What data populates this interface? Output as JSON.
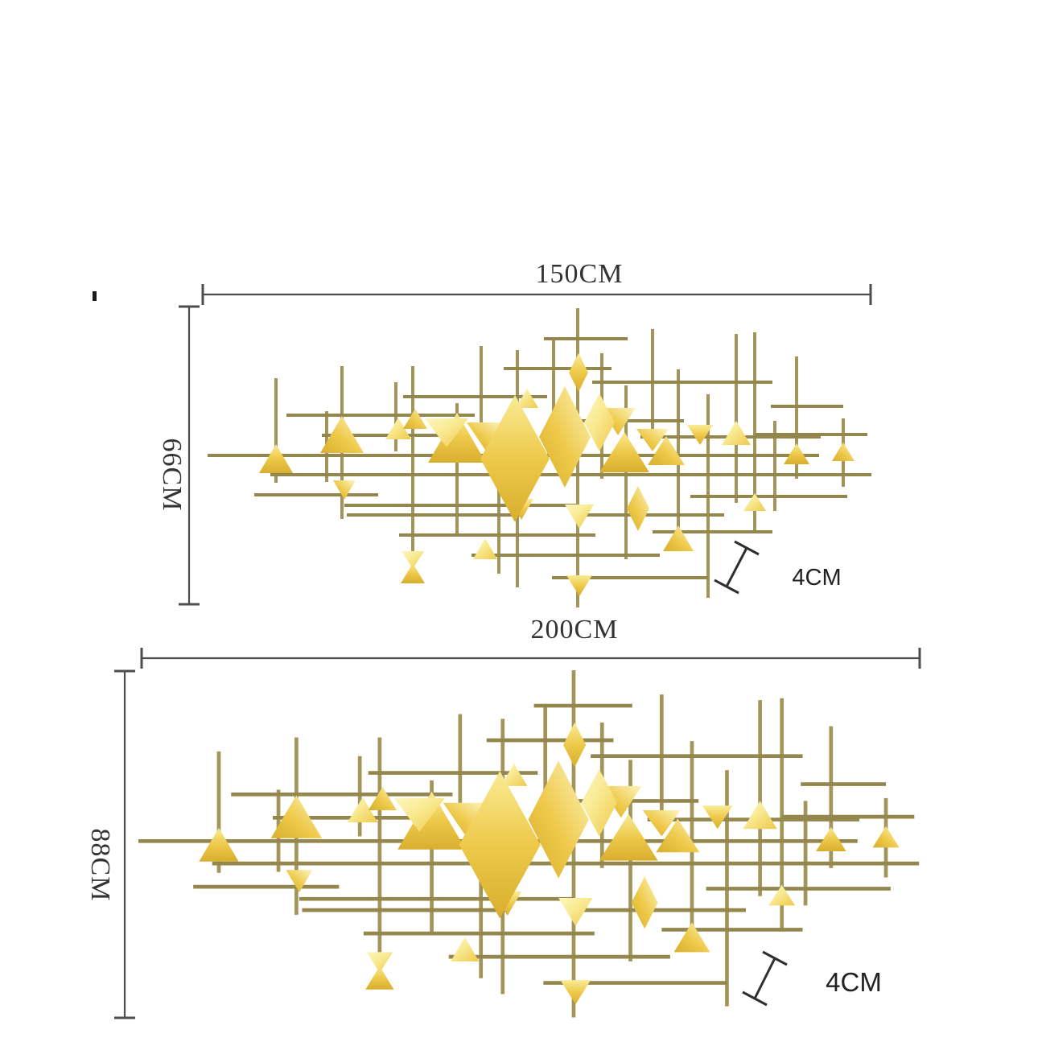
{
  "colors": {
    "background": "#ffffff",
    "dimension_line": "#4d4d4d",
    "dimension_text": "#333333",
    "depth_text": "#222222",
    "rod": "#a3945a",
    "rod_dark": "#94874e",
    "gold_light": "#f9eb96",
    "gold_mid": "#eec94a",
    "gold_deep": "#d8ae2e",
    "gold_pale": "#fdf6c0"
  },
  "top_diagram": {
    "width_label": "150CM",
    "height_label": "66CM",
    "depth_label": "4CM"
  },
  "bottom_diagram": {
    "width_label": "200CM",
    "height_label": "88CM",
    "depth_label": "4CM"
  },
  "artwork": {
    "rods_v": [
      [
        85,
        87,
        217
      ],
      [
        148,
        128,
        216
      ],
      [
        167,
        72,
        262
      ],
      [
        234,
        92,
        178
      ],
      [
        255,
        72,
        302
      ],
      [
        310,
        118,
        282
      ],
      [
        340,
        47,
        162
      ],
      [
        362,
        150,
        330
      ],
      [
        385,
        52,
        347
      ],
      [
        430,
        36,
        132
      ],
      [
        460,
        0,
        372
      ],
      [
        490,
        56,
        212
      ],
      [
        520,
        96,
        312
      ],
      [
        553,
        26,
        167
      ],
      [
        585,
        76,
        292
      ],
      [
        622,
        107,
        360
      ],
      [
        657,
        32,
        242
      ],
      [
        680,
        30,
        280
      ],
      [
        705,
        140,
        252
      ],
      [
        732,
        60,
        212
      ],
      [
        790,
        137,
        222
      ]
    ],
    "rods_h": [
      [
        183,
        0,
        760
      ],
      [
        207,
        78,
        825
      ],
      [
        133,
        98,
        332
      ],
      [
        158,
        142,
        308
      ],
      [
        110,
        243,
        422
      ],
      [
        75,
        368,
        502
      ],
      [
        92,
        478,
        702
      ],
      [
        140,
        428,
        592
      ],
      [
        160,
        538,
        762
      ],
      [
        232,
        58,
        212
      ],
      [
        257,
        173,
        392
      ],
      [
        282,
        238,
        482
      ],
      [
        307,
        328,
        562
      ],
      [
        257,
        468,
        642
      ],
      [
        234,
        600,
        795
      ],
      [
        278,
        553,
        702
      ],
      [
        335,
        428,
        622
      ],
      [
        38,
        418,
        522
      ],
      [
        157,
        680,
        820
      ],
      [
        122,
        700,
        790
      ],
      [
        245,
        170,
        460
      ]
    ],
    "triangles_up": [
      [
        85,
        205,
        42,
        36
      ],
      [
        167,
        180,
        54,
        46
      ],
      [
        237,
        163,
        32,
        27
      ],
      [
        310,
        192,
        72,
        62
      ],
      [
        258,
        150,
        30,
        25
      ],
      [
        397,
        124,
        28,
        24
      ],
      [
        518,
        204,
        62,
        50
      ],
      [
        570,
        195,
        46,
        36
      ],
      [
        657,
        170,
        36,
        30
      ],
      [
        732,
        194,
        32,
        26
      ],
      [
        790,
        190,
        28,
        23
      ],
      [
        345,
        312,
        30,
        26
      ],
      [
        255,
        342,
        30,
        25
      ],
      [
        585,
        302,
        38,
        32
      ],
      [
        680,
        252,
        28,
        22
      ]
    ],
    "triangles_down": [
      [
        170,
        214,
        28,
        24
      ],
      [
        297,
        137,
        54,
        36
      ],
      [
        390,
        237,
        30,
        26
      ],
      [
        510,
        124,
        44,
        34
      ],
      [
        462,
        244,
        36,
        30
      ],
      [
        612,
        145,
        32,
        25
      ],
      [
        345,
        142,
        46,
        34
      ],
      [
        255,
        302,
        28,
        22
      ],
      [
        462,
        332,
        32,
        26
      ],
      [
        553,
        150,
        40,
        28
      ]
    ],
    "diamonds": [
      [
        382,
        187,
        86,
        158
      ],
      [
        444,
        160,
        64,
        126
      ],
      [
        487,
        142,
        38,
        72
      ],
      [
        461,
        80,
        24,
        48
      ],
      [
        535,
        249,
        28,
        56
      ]
    ]
  }
}
